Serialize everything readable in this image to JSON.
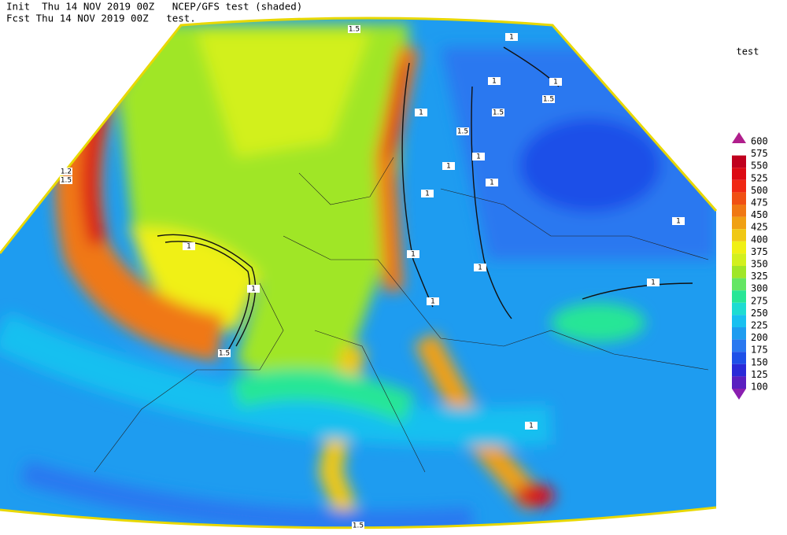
{
  "header": {
    "line1": "Init  Thu 14 NOV 2019 00Z   NCEP/GFS test (shaded)",
    "line2": "Fcst Thu 14 NOV 2019 00Z   test."
  },
  "legend": {
    "title": "test",
    "levels": [
      {
        "value": 600,
        "color": "#b01e8c"
      },
      {
        "value": 575,
        "color": "#c0001e"
      },
      {
        "value": 550,
        "color": "#dc0a14"
      },
      {
        "value": 525,
        "color": "#f02814"
      },
      {
        "value": 500,
        "color": "#f05014"
      },
      {
        "value": 475,
        "color": "#f07814"
      },
      {
        "value": 450,
        "color": "#f0a014"
      },
      {
        "value": 425,
        "color": "#f0c814"
      },
      {
        "value": 400,
        "color": "#f0f014"
      },
      {
        "value": 375,
        "color": "#d2f01e"
      },
      {
        "value": 350,
        "color": "#a0e628"
      },
      {
        "value": 325,
        "color": "#64e664"
      },
      {
        "value": 300,
        "color": "#28e696"
      },
      {
        "value": 275,
        "color": "#1edcd2"
      },
      {
        "value": 250,
        "color": "#18c0f0"
      },
      {
        "value": 225,
        "color": "#1e9cf0"
      },
      {
        "value": 200,
        "color": "#2a78f0"
      },
      {
        "value": 175,
        "color": "#1e50e8"
      },
      {
        "value": 150,
        "color": "#2a2ad8"
      },
      {
        "value": 125,
        "color": "#5a1fc0"
      },
      {
        "value": 100,
        "color": "#8a1fb0"
      }
    ]
  },
  "contour_labels": [
    "1.5",
    "1",
    "1",
    "1",
    "1.5",
    "1.5",
    "1",
    "1.5",
    "1",
    "1",
    "1",
    "1",
    "1.2",
    "1.5",
    "1",
    "1",
    "1",
    "1",
    "1",
    "1",
    "1",
    "1.5",
    "1",
    "1.5"
  ]
}
